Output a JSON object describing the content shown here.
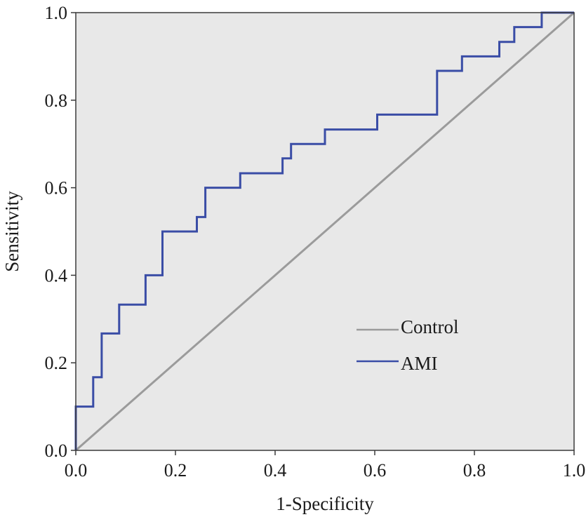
{
  "chart_data": {
    "type": "line",
    "title": "",
    "xlabel": "1-Specificity",
    "ylabel": "Sensitivity",
    "xlim": [
      0.0,
      1.0
    ],
    "ylim": [
      0.0,
      1.0
    ],
    "xticks": [
      "0.0",
      "0.2",
      "0.4",
      "0.6",
      "0.8",
      "1.0"
    ],
    "yticks": [
      "0.0",
      "0.2",
      "0.4",
      "0.6",
      "0.8",
      "1.0"
    ],
    "grid": false,
    "legend_position": "lower-right",
    "colors": {
      "plot_background": "#e8e8e8",
      "Control": "#9b9b9b",
      "AMI": "#3a4da6"
    },
    "series": [
      {
        "name": "Control",
        "x": [
          0.0,
          1.0
        ],
        "y": [
          0.0,
          1.0
        ]
      },
      {
        "name": "AMI",
        "x": [
          0.0,
          0.0,
          0.035,
          0.035,
          0.052,
          0.052,
          0.087,
          0.087,
          0.14,
          0.14,
          0.174,
          0.174,
          0.243,
          0.243,
          0.26,
          0.26,
          0.33,
          0.33,
          0.415,
          0.415,
          0.432,
          0.432,
          0.5,
          0.5,
          0.605,
          0.605,
          0.725,
          0.725,
          0.775,
          0.775,
          0.85,
          0.85,
          0.88,
          0.88,
          0.935,
          0.935,
          1.0
        ],
        "y": [
          0.0,
          0.1,
          0.1,
          0.167,
          0.167,
          0.267,
          0.267,
          0.333,
          0.333,
          0.4,
          0.4,
          0.5,
          0.5,
          0.533,
          0.533,
          0.6,
          0.6,
          0.633,
          0.633,
          0.667,
          0.667,
          0.7,
          0.7,
          0.733,
          0.733,
          0.767,
          0.767,
          0.867,
          0.867,
          0.9,
          0.9,
          0.933,
          0.933,
          0.967,
          0.967,
          1.0,
          1.0
        ]
      }
    ]
  }
}
